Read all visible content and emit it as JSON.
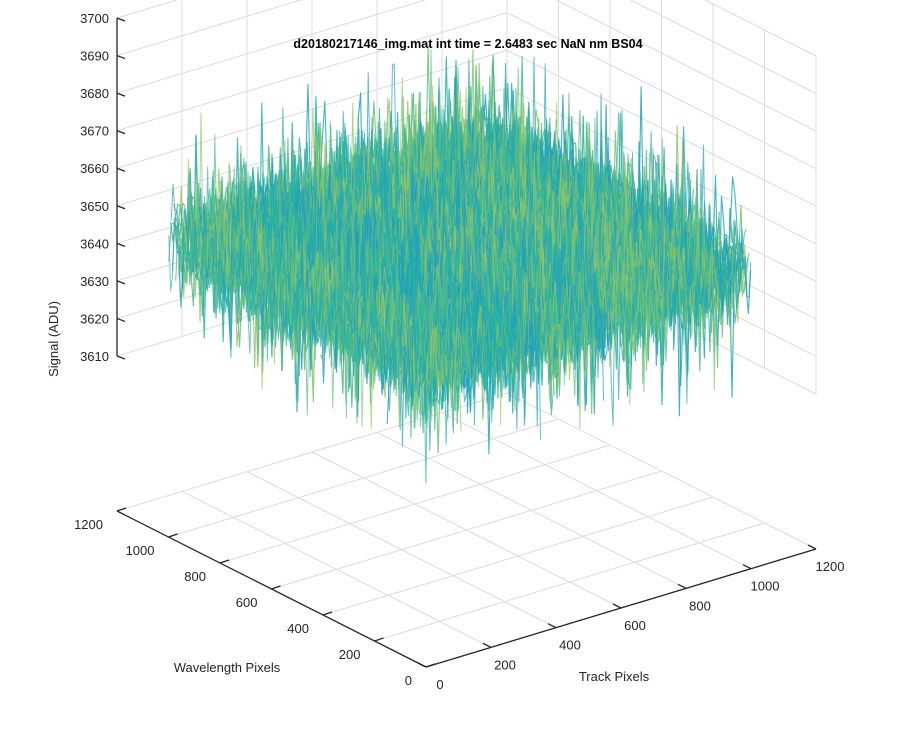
{
  "chart_data": {
    "type": "surface",
    "title": "d20180217146_img.mat int time = 2.6483 sec  NaN nm BS04",
    "xlabel": "Track Pixels",
    "ylabel": "Wavelength Pixels",
    "zlabel": "Signal (ADU)",
    "xlim": [
      0,
      1200
    ],
    "ylim": [
      0,
      1200
    ],
    "zlim": [
      3610,
      3700
    ],
    "x_ticks": [
      "0",
      "200",
      "400",
      "600",
      "800",
      "1000",
      "1200"
    ],
    "y_ticks": [
      "0",
      "200",
      "400",
      "600",
      "800",
      "1000",
      "1200"
    ],
    "z_ticks": [
      "3610",
      "3620",
      "3630",
      "3640",
      "3650",
      "3660",
      "3670",
      "3680",
      "3690",
      "3700"
    ],
    "grid": true,
    "colormap": "parula",
    "surface": {
      "x_range": [
        1,
        1000
      ],
      "y_range": [
        1,
        1000
      ],
      "mean_signal": 3648,
      "min_signal": 3612,
      "max_signal": 3695
    },
    "colors": {
      "low": "#1f8fd8",
      "mid": "#22b3a0",
      "high": "#e0d345"
    }
  }
}
